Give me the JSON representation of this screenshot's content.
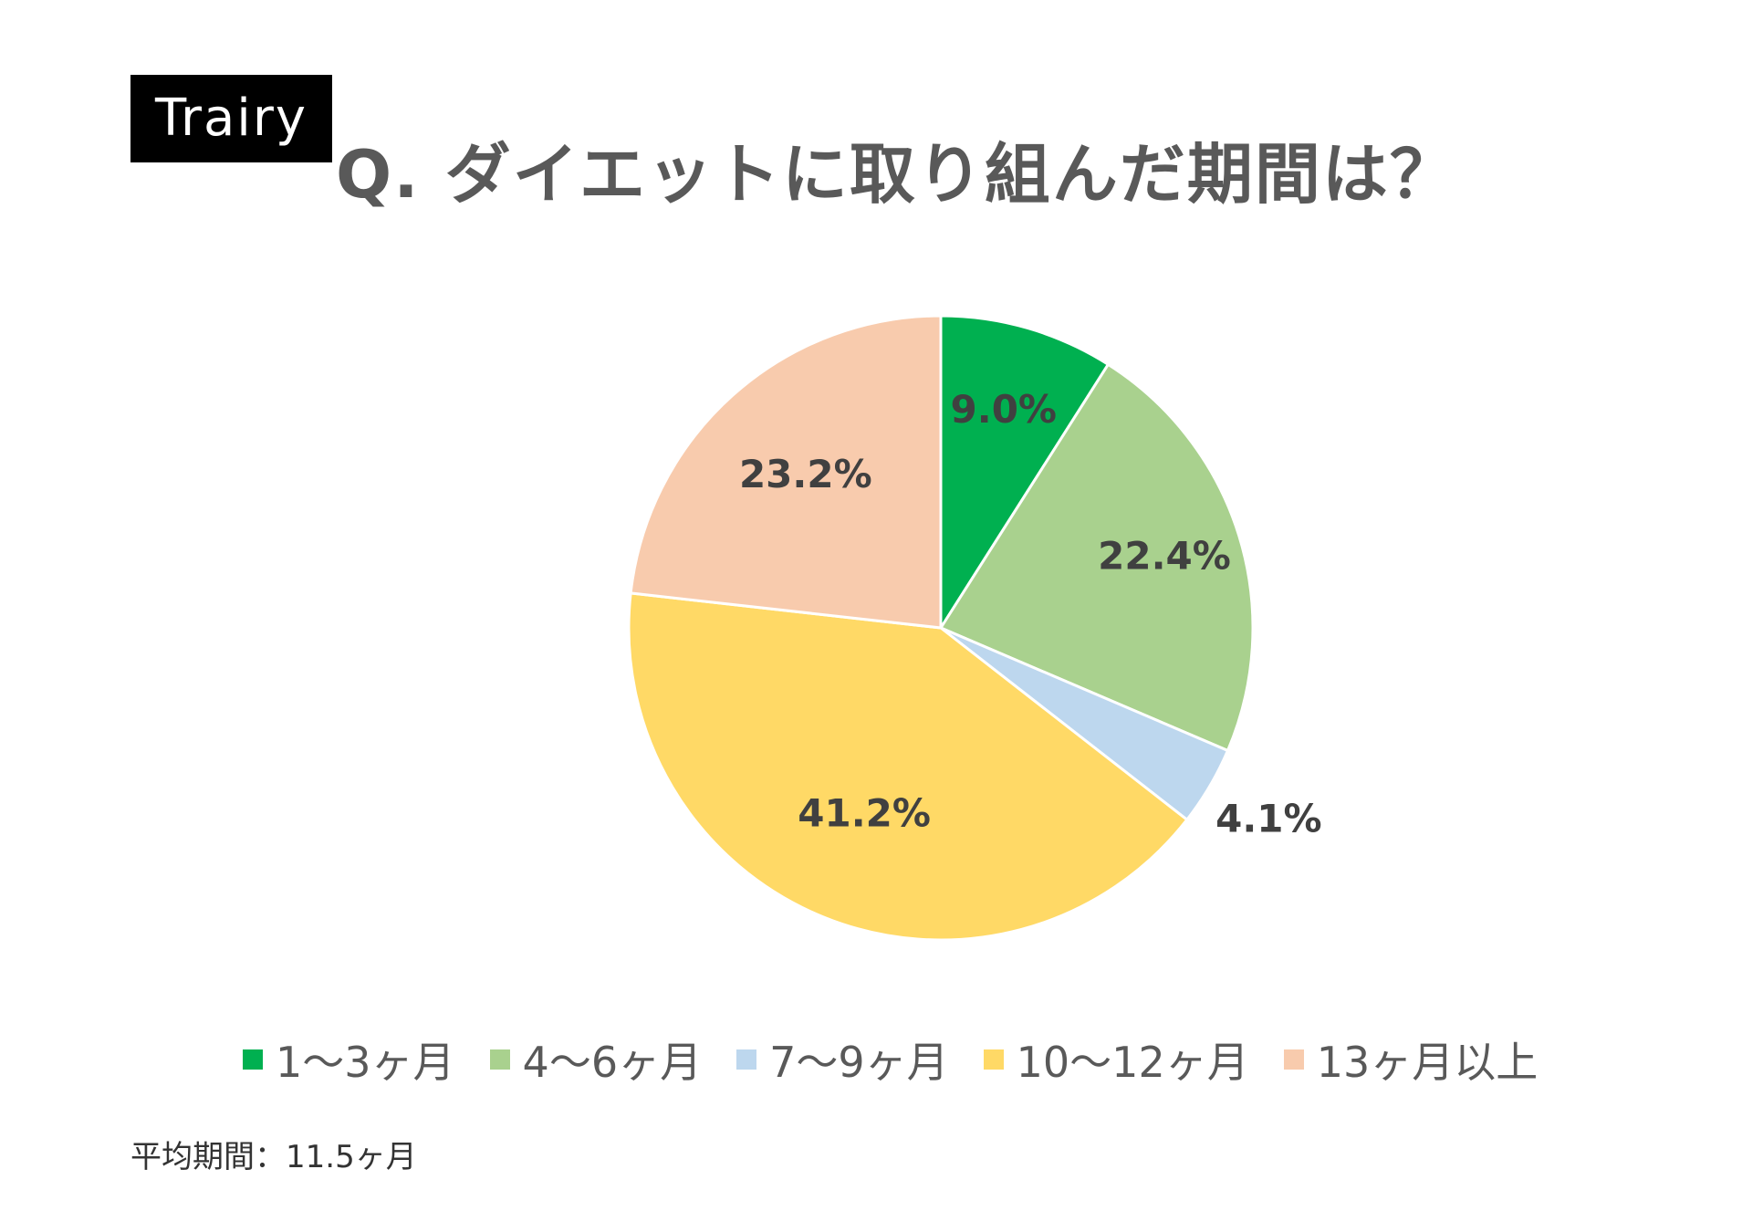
{
  "brand": "Trairy",
  "title": "Q. ダイエットに取り組んだ期間は？",
  "note": "平均期間：11.5ヶ月",
  "chart_data": {
    "type": "pie",
    "title": "Q. ダイエットに取り組んだ期間は？",
    "categories": [
      "1〜3ヶ月",
      "4〜6ヶ月",
      "7〜9ヶ月",
      "10〜12ヶ月",
      "13ヶ月以上"
    ],
    "values": [
      9.0,
      22.4,
      4.1,
      41.2,
      23.2
    ],
    "labels": [
      "9.0%",
      "22.4%",
      "4.1%",
      "41.2%",
      "23.2%"
    ],
    "colors": [
      "#00b050",
      "#a9d18e",
      "#bdd7ee",
      "#ffd966",
      "#f8cbad"
    ],
    "start": "12 o'clock, clockwise",
    "legend": "bottom"
  }
}
